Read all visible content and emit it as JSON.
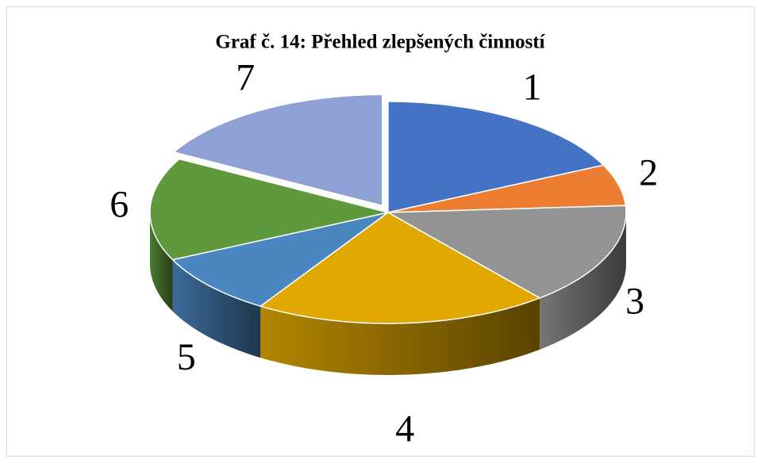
{
  "chart_data": {
    "type": "pie",
    "title": "Graf č. 14: Přehled zlepšených činností",
    "categories": [
      "1",
      "2",
      "3",
      "4",
      "5",
      "6",
      "7"
    ],
    "values": [
      18,
      6,
      15,
      20,
      9,
      15,
      17
    ],
    "colors": [
      "#4472c4",
      "#ed7d31",
      "#939393",
      "#e0a800",
      "#4a86c0",
      "#5e9a3c",
      "#8fa0d4"
    ],
    "exploded": [
      6
    ]
  }
}
